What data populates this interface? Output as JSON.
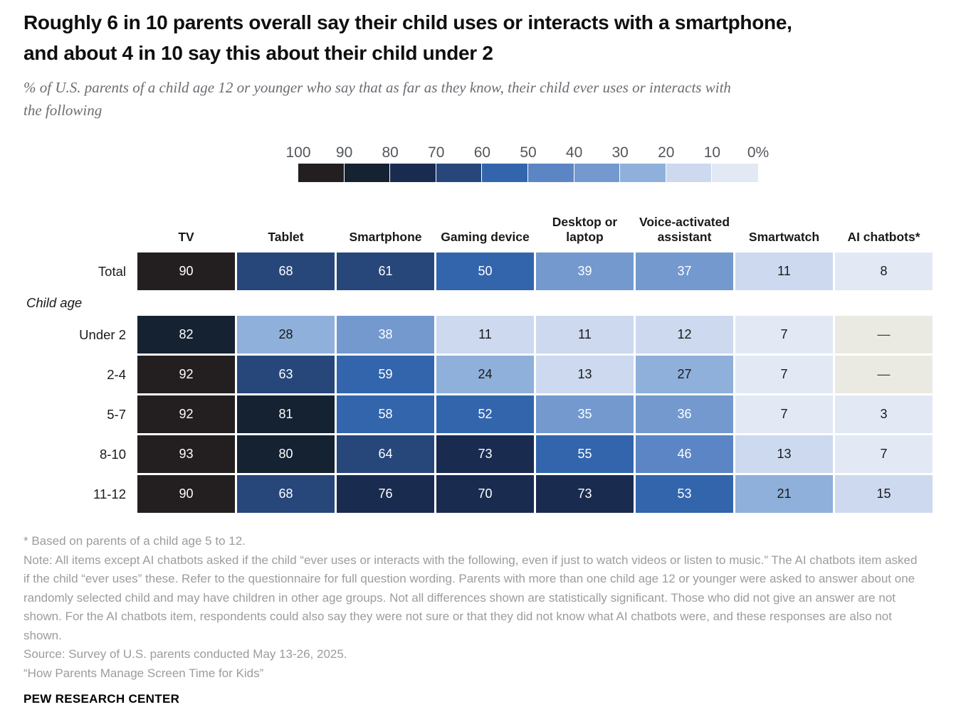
{
  "header": {
    "title_lines": [
      "Roughly 6 in 10 parents overall say their child uses or interacts with a smartphone,",
      "and about 4 in 10 say this about their child under 2"
    ],
    "subtitle_lines": [
      "% of U.S. parents of a child age 12 or younger who say that as far as they know, their child ever uses or interacts with",
      "the following"
    ]
  },
  "chart_data": {
    "type": "heatmap",
    "units": "% of parents",
    "legend": {
      "tick_labels": [
        "100",
        "90",
        "80",
        "70",
        "60",
        "50",
        "40",
        "30",
        "20",
        "10",
        "0%"
      ],
      "bucket_colors_low_to_high": [
        "#e2e9f5",
        "#ccd9ef",
        "#8fb0da",
        "#7399ce",
        "#5b85c4",
        "#3365ac",
        "#27477b",
        "#1a2b50",
        "#152232",
        "#231f20"
      ],
      "white_text_threshold": 30
    },
    "columns": [
      "TV",
      "Tablet",
      "Smartphone",
      "Gaming device",
      "Desktop or laptop",
      "Voice-activated assistant",
      "Smartwatch",
      "AI chatbots*"
    ],
    "total_row": {
      "label": "Total",
      "values": [
        90,
        68,
        61,
        50,
        39,
        37,
        11,
        8
      ]
    },
    "section_label": "Child age",
    "age_rows": [
      {
        "label": "Under 2",
        "values": [
          82,
          28,
          38,
          11,
          11,
          12,
          7,
          null
        ]
      },
      {
        "label": "2-4",
        "values": [
          92,
          63,
          59,
          24,
          13,
          27,
          7,
          null
        ]
      },
      {
        "label": "5-7",
        "values": [
          92,
          81,
          58,
          52,
          35,
          36,
          7,
          3
        ]
      },
      {
        "label": "8-10",
        "values": [
          93,
          80,
          64,
          73,
          55,
          46,
          13,
          7
        ]
      },
      {
        "label": "11-12",
        "values": [
          90,
          68,
          76,
          70,
          73,
          53,
          21,
          15
        ]
      }
    ],
    "no_data_symbol": "—",
    "no_data_bg": "#ebeae2",
    "no_data_text_color": "#3f3f3f",
    "dark_text_color": "#1a1a1a",
    "light_text_color": "#ffffff"
  },
  "footer": {
    "asterisk_note": "* Based on parents of a child age 5 to 12.",
    "note": "Note: All items except AI chatbots asked if the child “ever uses or interacts with the following, even if just to watch videos or listen to music.” The AI chatbots item asked if the child “ever uses” these. Refer to the questionnaire for full question wording. Parents with more than one child age 12 or younger were asked to answer about one randomly selected child and may have children in other age groups. Not all differences shown are statistically significant. Those who did not give an answer are not shown. For the AI chatbots item, respondents could also say they were not sure or that they did not know what AI chatbots were, and these responses are also not shown.",
    "source": "Source: Survey of U.S. parents conducted May 13-26, 2025.",
    "report_title": "“How Parents Manage Screen Time for Kids”",
    "brand": "PEW RESEARCH CENTER"
  }
}
